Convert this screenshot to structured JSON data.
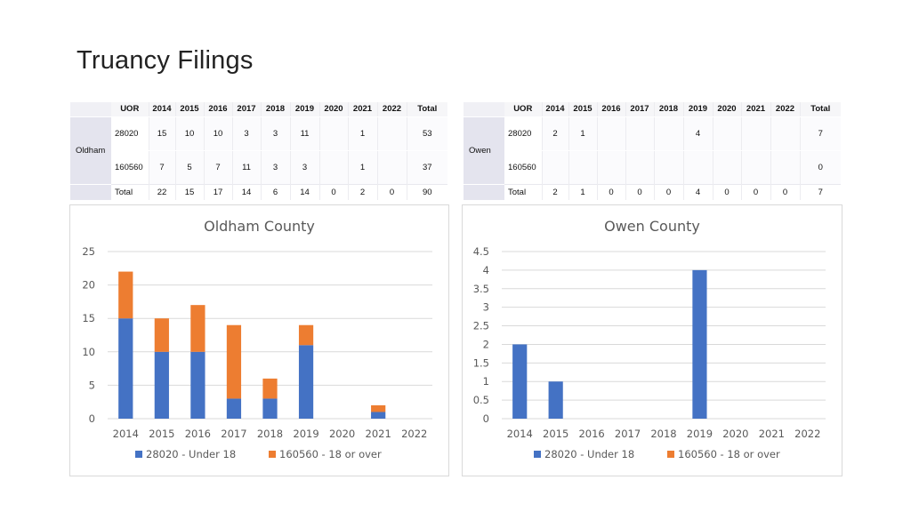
{
  "page": {
    "title": "Truancy Filings"
  },
  "tables": [
    {
      "county": "Oldham",
      "headers": [
        "UOR",
        "2014",
        "2015",
        "2016",
        "2017",
        "2018",
        "2019",
        "2020",
        "2021",
        "2022",
        "Total"
      ],
      "rows": [
        [
          "28020",
          "15",
          "10",
          "10",
          "3",
          "3",
          "11",
          "",
          "1",
          "",
          "53"
        ],
        [
          "160560",
          "7",
          "5",
          "7",
          "11",
          "3",
          "3",
          "",
          "1",
          "",
          "37"
        ],
        [
          "Total",
          "22",
          "15",
          "17",
          "14",
          "6",
          "14",
          "0",
          "2",
          "0",
          "90"
        ]
      ]
    },
    {
      "county": "Owen",
      "headers": [
        "UOR",
        "2014",
        "2015",
        "2016",
        "2017",
        "2018",
        "2019",
        "2020",
        "2021",
        "2022",
        "Total"
      ],
      "rows": [
        [
          "28020",
          "2",
          "1",
          "",
          "",
          "",
          "4",
          "",
          "",
          "",
          "7"
        ],
        [
          "160560",
          "",
          "",
          "",
          "",
          "",
          "",
          "",
          "",
          "",
          "0"
        ],
        [
          "Total",
          "2",
          "1",
          "0",
          "0",
          "0",
          "4",
          "0",
          "0",
          "0",
          "7"
        ]
      ]
    }
  ],
  "chart_data": [
    {
      "type": "bar",
      "stacked": true,
      "title": "Oldham County",
      "categories": [
        "2014",
        "2015",
        "2016",
        "2017",
        "2018",
        "2019",
        "2020",
        "2021",
        "2022"
      ],
      "series": [
        {
          "name": "28020 - Under 18",
          "color": "#4472c4",
          "values": [
            15,
            10,
            10,
            3,
            3,
            11,
            0,
            1,
            0
          ]
        },
        {
          "name": "160560 - 18 or over",
          "color": "#ed7d31",
          "values": [
            7,
            5,
            7,
            11,
            3,
            3,
            0,
            1,
            0
          ]
        }
      ],
      "ylim": [
        0,
        25
      ],
      "yticks": [
        "0",
        "5",
        "10",
        "15",
        "20",
        "25"
      ],
      "grid": true,
      "legend": "bottom"
    },
    {
      "type": "bar",
      "stacked": true,
      "title": "Owen County",
      "categories": [
        "2014",
        "2015",
        "2016",
        "2017",
        "2018",
        "2019",
        "2020",
        "2021",
        "2022"
      ],
      "series": [
        {
          "name": "28020 - Under 18",
          "color": "#4472c4",
          "values": [
            2,
            1,
            0,
            0,
            0,
            4,
            0,
            0,
            0
          ]
        },
        {
          "name": "160560 - 18 or over",
          "color": "#ed7d31",
          "values": [
            0,
            0,
            0,
            0,
            0,
            0,
            0,
            0,
            0
          ]
        }
      ],
      "ylim": [
        0,
        4.5
      ],
      "yticks": [
        "0",
        "0.5",
        "1",
        "1.5",
        "2",
        "2.5",
        "3",
        "3.5",
        "4",
        "4.5"
      ],
      "grid": true,
      "legend": "bottom"
    }
  ]
}
